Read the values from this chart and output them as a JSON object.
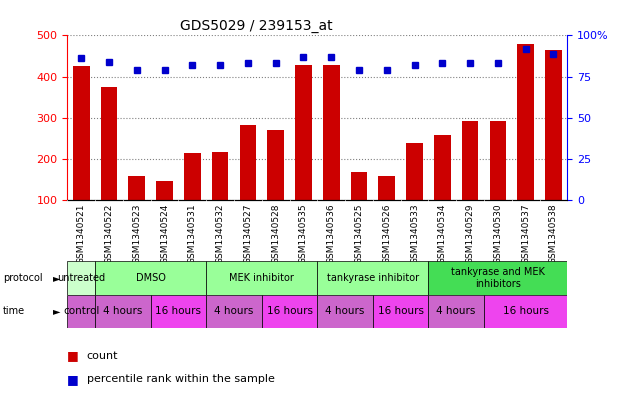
{
  "title": "GDS5029 / 239153_at",
  "samples": [
    "GSM1340521",
    "GSM1340522",
    "GSM1340523",
    "GSM1340524",
    "GSM1340531",
    "GSM1340532",
    "GSM1340527",
    "GSM1340528",
    "GSM1340535",
    "GSM1340536",
    "GSM1340525",
    "GSM1340526",
    "GSM1340533",
    "GSM1340534",
    "GSM1340529",
    "GSM1340530",
    "GSM1340537",
    "GSM1340538"
  ],
  "counts": [
    425,
    375,
    160,
    148,
    215,
    218,
    282,
    270,
    428,
    428,
    168,
    158,
    238,
    258,
    292,
    292,
    478,
    465
  ],
  "percentiles": [
    86,
    84,
    79,
    79,
    82,
    82,
    83,
    83,
    87,
    87,
    79,
    79,
    82,
    83,
    83,
    83,
    92,
    89
  ],
  "ylim_left": [
    100,
    500
  ],
  "ylim_right": [
    0,
    100
  ],
  "yticks_left": [
    100,
    200,
    300,
    400,
    500
  ],
  "yticks_right": [
    0,
    25,
    50,
    75,
    100
  ],
  "bar_color": "#CC0000",
  "dot_color": "#0000CC",
  "bg_color": "#ffffff",
  "tick_bg_color": "#cccccc",
  "protocol_groups": [
    {
      "label": "untreated",
      "start": 0,
      "end": 1,
      "color": "#ccffcc"
    },
    {
      "label": "DMSO",
      "start": 1,
      "end": 5,
      "color": "#99ff99"
    },
    {
      "label": "MEK inhibitor",
      "start": 5,
      "end": 9,
      "color": "#99ff99"
    },
    {
      "label": "tankyrase inhibitor",
      "start": 9,
      "end": 13,
      "color": "#99ff99"
    },
    {
      "label": "tankyrase and MEK\ninhibitors",
      "start": 13,
      "end": 18,
      "color": "#44dd55"
    }
  ],
  "time_groups": [
    {
      "label": "control",
      "start": 0,
      "end": 1,
      "color": "#cc66cc"
    },
    {
      "label": "4 hours",
      "start": 1,
      "end": 3,
      "color": "#cc66cc"
    },
    {
      "label": "16 hours",
      "start": 3,
      "end": 5,
      "color": "#ee44ee"
    },
    {
      "label": "4 hours",
      "start": 5,
      "end": 7,
      "color": "#cc66cc"
    },
    {
      "label": "16 hours",
      "start": 7,
      "end": 9,
      "color": "#ee44ee"
    },
    {
      "label": "4 hours",
      "start": 9,
      "end": 11,
      "color": "#cc66cc"
    },
    {
      "label": "16 hours",
      "start": 11,
      "end": 13,
      "color": "#ee44ee"
    },
    {
      "label": "4 hours",
      "start": 13,
      "end": 15,
      "color": "#cc66cc"
    },
    {
      "label": "16 hours",
      "start": 15,
      "end": 18,
      "color": "#ee44ee"
    }
  ]
}
